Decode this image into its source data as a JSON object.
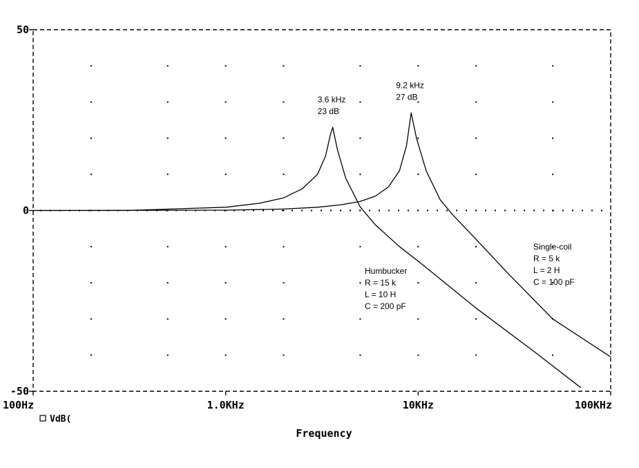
{
  "chart_data": {
    "type": "line",
    "xlabel": "Frequency",
    "x_scale": "log",
    "xlim": [
      100,
      100000
    ],
    "ylim": [
      -50,
      50
    ],
    "x_ticks": [
      {
        "value": 100,
        "label": "100Hz"
      },
      {
        "value": 1000,
        "label": "1.0KHz"
      },
      {
        "value": 10000,
        "label": "10KHz"
      },
      {
        "value": 100000,
        "label": "100KHz"
      }
    ],
    "y_ticks": [
      {
        "value": 50,
        "label": "50"
      },
      {
        "value": 0,
        "label": "0"
      },
      {
        "value": -50,
        "label": "-50"
      }
    ],
    "grid": "dotted",
    "legend": [
      {
        "marker": "square",
        "label": "VdB("
      }
    ],
    "series": [
      {
        "name": "Humbucker",
        "points": [
          [
            100,
            0
          ],
          [
            300,
            0
          ],
          [
            1000,
            0.9
          ],
          [
            1500,
            2
          ],
          [
            2000,
            3.5
          ],
          [
            2500,
            6
          ],
          [
            3000,
            10
          ],
          [
            3300,
            15
          ],
          [
            3500,
            21
          ],
          [
            3600,
            23
          ],
          [
            3800,
            17
          ],
          [
            4200,
            9
          ],
          [
            5000,
            1
          ],
          [
            6000,
            -4
          ],
          [
            8000,
            -10
          ],
          [
            10000,
            -14
          ],
          [
            20000,
            -27
          ],
          [
            40000,
            -39
          ],
          [
            70000,
            -49
          ]
        ]
      },
      {
        "name": "Single-coil",
        "points": [
          [
            100,
            0
          ],
          [
            1000,
            0.1
          ],
          [
            2000,
            0.4
          ],
          [
            3000,
            0.9
          ],
          [
            4000,
            1.6
          ],
          [
            5000,
            2.5
          ],
          [
            6000,
            4
          ],
          [
            7000,
            6.5
          ],
          [
            8000,
            11
          ],
          [
            8700,
            18
          ],
          [
            9200,
            27
          ],
          [
            9800,
            20
          ],
          [
            11000,
            11
          ],
          [
            13000,
            3
          ],
          [
            15000,
            -1
          ],
          [
            20000,
            -8
          ],
          [
            30000,
            -18
          ],
          [
            50000,
            -30
          ],
          [
            100000,
            -40.5
          ]
        ]
      }
    ],
    "annotations": [
      {
        "lines": [
          "3.6 kHz",
          "23 dB"
        ],
        "x": 3600,
        "y": 23
      },
      {
        "lines": [
          "9.2 kHz",
          "27 dB"
        ],
        "x": 9200,
        "y": 27
      },
      {
        "lines": [
          "Humbucker",
          "R = 15 k",
          "L = 10 H",
          "C = 200 pF"
        ],
        "series": "Humbucker"
      },
      {
        "lines": [
          "Single-coil",
          "R = 5 k",
          "L = 2 H",
          "C = 100 pF"
        ],
        "series": "Single-coil"
      }
    ]
  }
}
